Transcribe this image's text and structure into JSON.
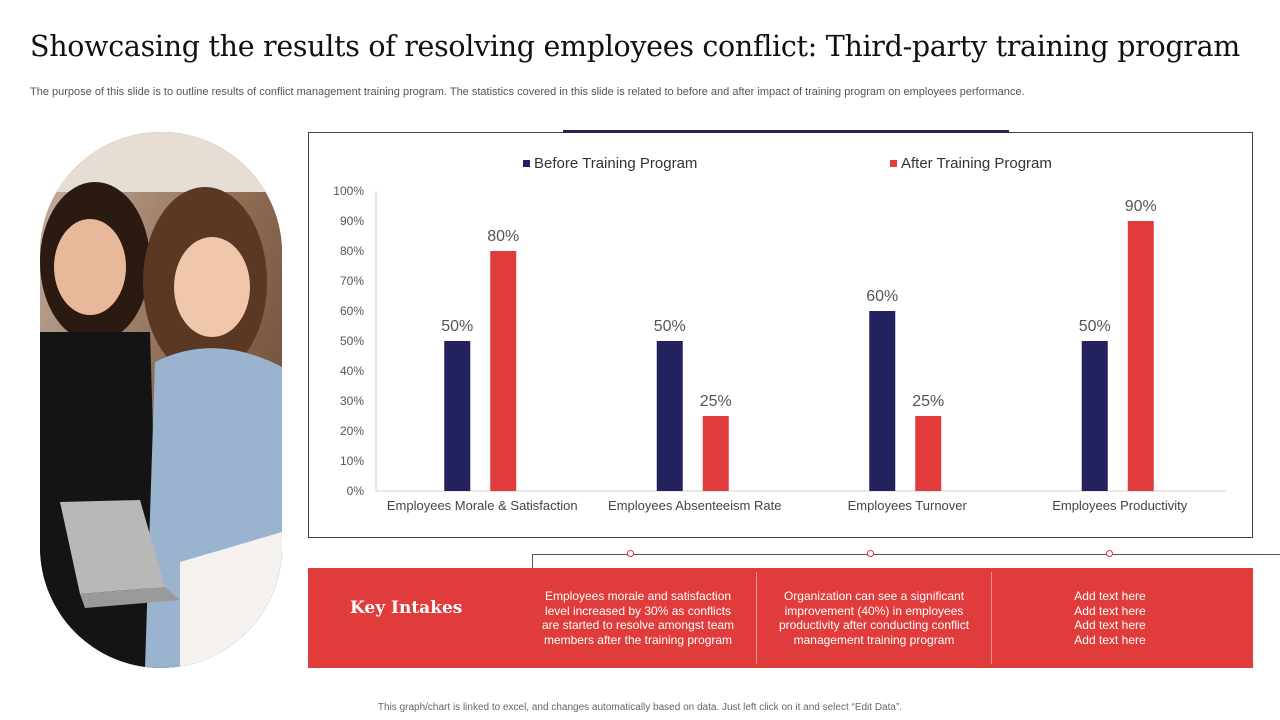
{
  "header": {
    "title": "Showcasing the results of resolving employees conflict: Third-party training program",
    "subtitle": "The purpose of this slide is to outline results of conflict management training program. The statistics covered in this slide is related to before and after impact of training program on employees performance."
  },
  "colors": {
    "before": "#23215e",
    "after": "#e03c3c"
  },
  "chart_data": {
    "type": "bar",
    "categories": [
      "Employees Morale & Satisfaction",
      "Employees Absenteeism Rate",
      "Employees Turnover",
      "Employees Productivity"
    ],
    "series": [
      {
        "name": "Before Training Program",
        "values": [
          50,
          50,
          60,
          50
        ]
      },
      {
        "name": "After Training Program",
        "values": [
          80,
          25,
          25,
          90
        ]
      }
    ],
    "yticks": [
      "0%",
      "10%",
      "20%",
      "30%",
      "40%",
      "50%",
      "60%",
      "70%",
      "80%",
      "90%",
      "100%"
    ],
    "ylim": [
      0,
      100
    ],
    "data_labels": [
      [
        "50%",
        "50%",
        "60%",
        "50%"
      ],
      [
        "80%",
        "25%",
        "25%",
        "90%"
      ]
    ],
    "legend_position": "top",
    "grid": false
  },
  "key_intakes": {
    "title": "Key Intakes",
    "items": [
      "Employees morale and satisfaction level increased by 30% as conflicts are started to resolve amongst team members after the training program",
      "Organization can see a significant improvement (40%) in employees productivity after conducting conflict management training program",
      "Add text here\nAdd text here\nAdd text here\nAdd text here"
    ]
  },
  "footer": "This graph/chart is linked to excel, and changes automatically based on data. Just left click on it and select “Edit Data”."
}
